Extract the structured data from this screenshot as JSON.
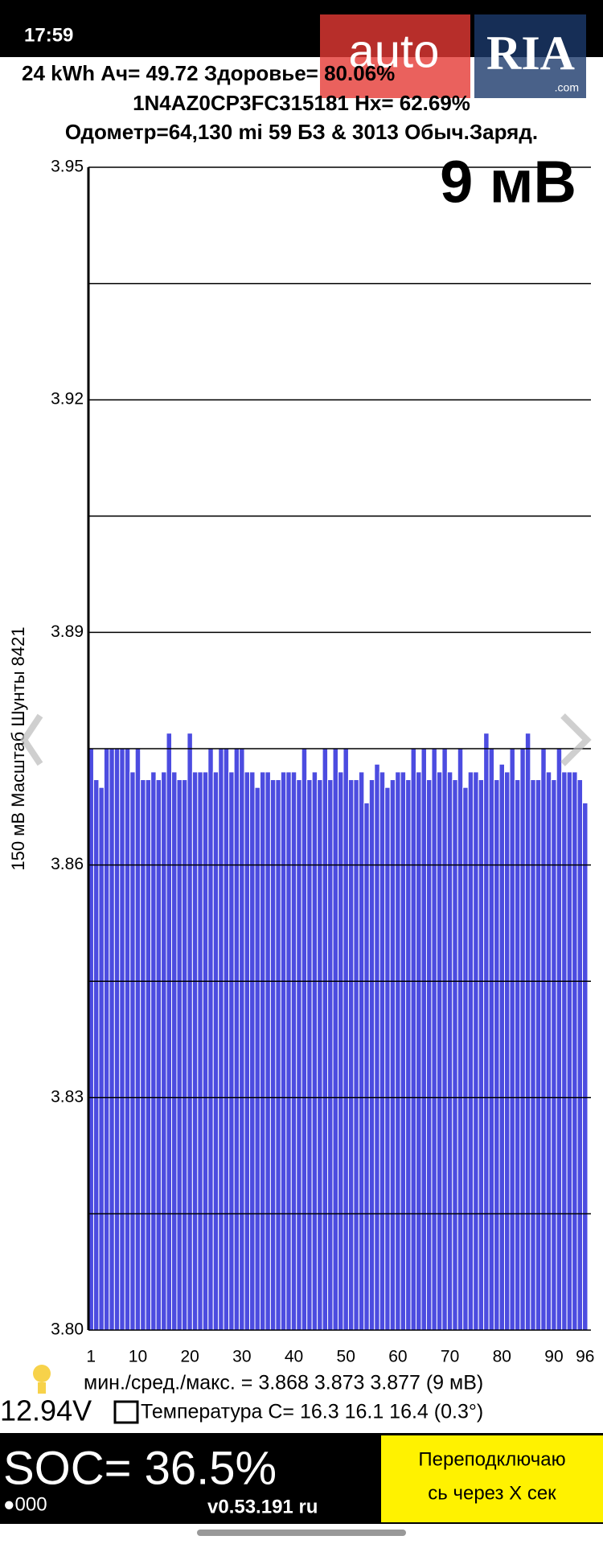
{
  "status_bar": {
    "time": "17:59"
  },
  "watermark": {
    "brand": "auto",
    "brand2": "RIA",
    "domain": ".com"
  },
  "header": {
    "line1": "24 kWh  Ач= 49.72 Здоровье= 80.06%",
    "line2": "1N4AZ0CP3FC315181   Hx= 62.69%",
    "line3": "Одометр=64,130 mi 59 БЗ & 3013 Обыч.Заряд."
  },
  "chart_data": {
    "type": "bar",
    "title": "9 мВ",
    "y_label": "150 мВ Масштаб  Шунты 8421",
    "x": [
      1,
      2,
      3,
      4,
      5,
      6,
      7,
      8,
      9,
      10,
      11,
      12,
      13,
      14,
      15,
      16,
      17,
      18,
      19,
      20,
      21,
      22,
      23,
      24,
      25,
      26,
      27,
      28,
      29,
      30,
      31,
      32,
      33,
      34,
      35,
      36,
      37,
      38,
      39,
      40,
      41,
      42,
      43,
      44,
      45,
      46,
      47,
      48,
      49,
      50,
      51,
      52,
      53,
      54,
      55,
      56,
      57,
      58,
      59,
      60,
      61,
      62,
      63,
      64,
      65,
      66,
      67,
      68,
      69,
      70,
      71,
      72,
      73,
      74,
      75,
      76,
      77,
      78,
      79,
      80,
      81,
      82,
      83,
      84,
      85,
      86,
      87,
      88,
      89,
      90,
      91,
      92,
      93,
      94,
      95,
      96
    ],
    "values": [
      3.875,
      3.871,
      3.87,
      3.875,
      3.875,
      3.875,
      3.875,
      3.875,
      3.872,
      3.875,
      3.871,
      3.871,
      3.872,
      3.871,
      3.872,
      3.877,
      3.872,
      3.871,
      3.871,
      3.877,
      3.872,
      3.872,
      3.872,
      3.875,
      3.872,
      3.875,
      3.875,
      3.872,
      3.875,
      3.875,
      3.872,
      3.872,
      3.87,
      3.872,
      3.872,
      3.871,
      3.871,
      3.872,
      3.872,
      3.872,
      3.871,
      3.875,
      3.871,
      3.872,
      3.871,
      3.875,
      3.871,
      3.875,
      3.872,
      3.875,
      3.871,
      3.871,
      3.872,
      3.868,
      3.871,
      3.873,
      3.872,
      3.87,
      3.871,
      3.872,
      3.872,
      3.871,
      3.875,
      3.872,
      3.875,
      3.871,
      3.875,
      3.872,
      3.875,
      3.872,
      3.871,
      3.875,
      3.87,
      3.872,
      3.872,
      3.871,
      3.877,
      3.875,
      3.871,
      3.873,
      3.872,
      3.875,
      3.871,
      3.875,
      3.877,
      3.871,
      3.871,
      3.875,
      3.872,
      3.871,
      3.875,
      3.872,
      3.872,
      3.872,
      3.871,
      3.868
    ],
    "color": "#4c4ce0",
    "xlim": [
      0.5,
      96.5
    ],
    "xticks": [
      1,
      10,
      20,
      30,
      40,
      50,
      60,
      70,
      80,
      90,
      96
    ],
    "ylim": [
      3.8,
      3.95
    ],
    "yticks": [
      {
        "value": 3.8,
        "label": "3.80"
      },
      3.83,
      3.86,
      3.89,
      3.92,
      3.95
    ],
    "yminor": [
      3.815,
      3.845,
      3.875,
      3.905,
      3.935
    ],
    "grid": true
  },
  "stats": {
    "minmax": "мин./сред./макс. = 3.868 3.873 3.877  (9 мВ)",
    "voltage": "12.94V",
    "temperature": "Температура С= 16.3  16.1  16.4  (0.3°)"
  },
  "footer": {
    "soc": "SOC= 36.5%",
    "dots": "●000",
    "version": "v0.53.191 ru",
    "button": [
      "Переподключаю",
      "сь через Х сек"
    ]
  }
}
